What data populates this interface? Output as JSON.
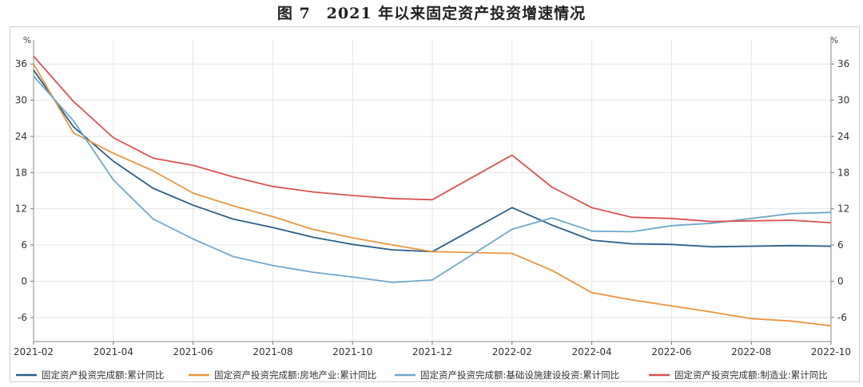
{
  "title": "图 7　2021 年以来固定资产投资增速情况",
  "chart_data": {
    "type": "line",
    "unit_left": "%",
    "unit_right": "%",
    "ylim": [
      -10,
      40
    ],
    "yticks": [
      -6,
      0,
      6,
      12,
      18,
      24,
      30,
      36
    ],
    "xtick_labels": [
      "2021-02",
      "2021-04",
      "2021-06",
      "2021-08",
      "2021-10",
      "2021-12",
      "2022-02",
      "2022-04",
      "2022-06",
      "2022-08",
      "2022-10"
    ],
    "x": [
      "2021-02",
      "2021-03",
      "2021-04",
      "2021-05",
      "2021-06",
      "2021-07",
      "2021-08",
      "2021-09",
      "2021-10",
      "2021-11",
      "2021-12",
      "2022-02",
      "2022-03",
      "2022-04",
      "2022-05",
      "2022-06",
      "2022-07",
      "2022-08",
      "2022-09",
      "2022-10"
    ],
    "grid": true,
    "legend_position": "bottom",
    "series": [
      {
        "name": "固定资产投资完成额:累计同比",
        "color": "#2b5f8c",
        "values": [
          35.0,
          25.6,
          19.9,
          15.4,
          12.6,
          10.3,
          8.9,
          7.3,
          6.1,
          5.2,
          4.9,
          12.2,
          9.3,
          6.8,
          6.2,
          6.1,
          5.7,
          5.8,
          5.9,
          5.8
        ]
      },
      {
        "name": "固定资产投资完成额:房地产业:累计同比",
        "color": "#e8963f",
        "values": [
          36.0,
          24.6,
          21.2,
          18.3,
          14.6,
          12.5,
          10.7,
          8.6,
          7.2,
          6.0,
          4.9,
          4.6,
          1.8,
          -1.9,
          -3.1,
          -4.1,
          -5.1,
          -6.2,
          -6.6,
          -7.4
        ]
      },
      {
        "name": "固定资产投资完成额:基础设施建设投资:累计同比",
        "color": "#6fa8c9",
        "values": [
          34.0,
          26.6,
          16.8,
          10.3,
          7.0,
          4.1,
          2.6,
          1.5,
          0.7,
          -0.2,
          0.2,
          8.6,
          10.5,
          8.3,
          8.2,
          9.2,
          9.6,
          10.4,
          11.2,
          11.4
        ]
      },
      {
        "name": "固定资产投资完成额:制造业:累计同比",
        "color": "#d9534f",
        "values": [
          37.3,
          29.8,
          23.8,
          20.4,
          19.2,
          17.3,
          15.7,
          14.8,
          14.2,
          13.7,
          13.5,
          20.9,
          15.6,
          12.2,
          10.6,
          10.4,
          9.9,
          10.0,
          10.1,
          9.7
        ]
      }
    ]
  }
}
